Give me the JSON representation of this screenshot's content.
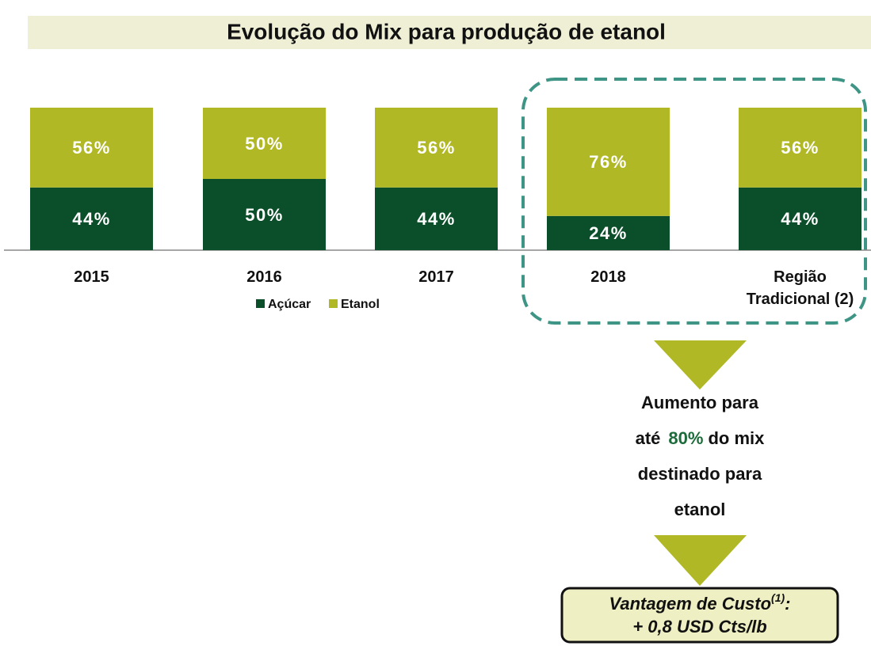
{
  "chart_data": {
    "type": "bar",
    "stacked": true,
    "title": "Evolução do Mix para produção de etanol",
    "categories": [
      "2015",
      "2016",
      "2017",
      "2018",
      "Região Tradicional (2)"
    ],
    "series": [
      {
        "name": "Açúcar",
        "color": "#0b4f2a",
        "values": [
          44,
          50,
          44,
          24,
          44
        ],
        "value_labels": [
          "44%",
          "50%",
          "44%",
          "24%",
          "44%"
        ]
      },
      {
        "name": "Etanol",
        "color": "#b1b826",
        "values": [
          56,
          50,
          56,
          76,
          56
        ],
        "value_labels": [
          "56%",
          "50%",
          "56%",
          "76%",
          "56%"
        ]
      }
    ],
    "annotation": {
      "line1": "Aumento para",
      "prefix": "até",
      "highlight": "80%",
      "suffix": "do mix",
      "line3": "destinado para",
      "line4": "etanol"
    },
    "callout": {
      "line1": "Vantagem de Custo",
      "sup": "(1)",
      "colon": ":",
      "line2": "+ 0,8 USD Cts/lb"
    }
  }
}
